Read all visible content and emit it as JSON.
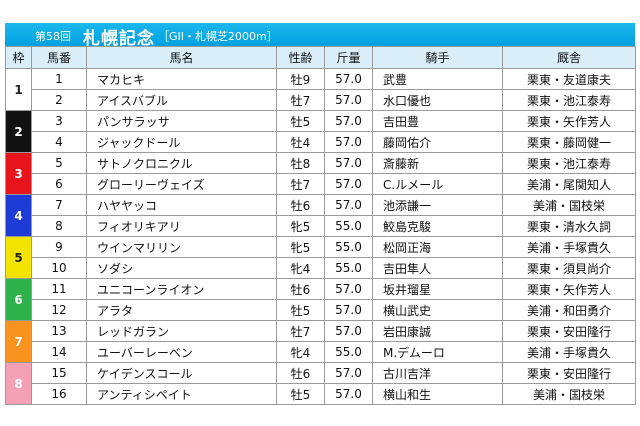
{
  "header": {
    "round": "第58回",
    "race_name": "札幌記念",
    "grade": "［GII・札幌芝2000m］"
  },
  "columns": [
    "枠",
    "馬番",
    "馬名",
    "性齢",
    "斤量",
    "騎手",
    "厩舎"
  ],
  "waku": [
    {
      "label": "1",
      "bg": "#ffffff",
      "fg": "#222222"
    },
    {
      "label": "2",
      "bg": "#111111",
      "fg": "#ffffff"
    },
    {
      "label": "3",
      "bg": "#e8141b",
      "fg": "#ffffff"
    },
    {
      "label": "4",
      "bg": "#1e3bd6",
      "fg": "#ffffff"
    },
    {
      "label": "5",
      "bg": "#f2e400",
      "fg": "#222222"
    },
    {
      "label": "6",
      "bg": "#2fb24c",
      "fg": "#ffffff"
    },
    {
      "label": "7",
      "bg": "#f7931e",
      "fg": "#ffffff"
    },
    {
      "label": "8",
      "bg": "#f4a1b5",
      "fg": "#ffffff"
    }
  ],
  "rows": [
    {
      "num": "1",
      "horse": "マカヒキ",
      "age": "牡9",
      "weight": "57.0",
      "jockey": "武豊",
      "trainer": "栗東・友道康夫"
    },
    {
      "num": "2",
      "horse": "アイスバブル",
      "age": "牡7",
      "weight": "57.0",
      "jockey": "水口優也",
      "trainer": "栗東・池江泰寿"
    },
    {
      "num": "3",
      "horse": "パンサラッサ",
      "age": "牡5",
      "weight": "57.0",
      "jockey": "吉田豊",
      "trainer": "栗東・矢作芳人"
    },
    {
      "num": "4",
      "horse": "ジャックドール",
      "age": "牡4",
      "weight": "57.0",
      "jockey": "藤岡佑介",
      "trainer": "栗東・藤岡健一"
    },
    {
      "num": "5",
      "horse": "サトノクロニクル",
      "age": "牡8",
      "weight": "57.0",
      "jockey": "斎藤新",
      "trainer": "栗東・池江泰寿"
    },
    {
      "num": "6",
      "horse": "グローリーヴェイズ",
      "age": "牡7",
      "weight": "57.0",
      "jockey": "C.ルメール",
      "trainer": "美浦・尾関知人"
    },
    {
      "num": "7",
      "horse": "ハヤヤッコ",
      "age": "牡6",
      "weight": "57.0",
      "jockey": "池添謙一",
      "trainer": "美浦・国枝栄"
    },
    {
      "num": "8",
      "horse": "フィオリキアリ",
      "age": "牝5",
      "weight": "55.0",
      "jockey": "鮫島克駿",
      "trainer": "栗東・清水久詞"
    },
    {
      "num": "9",
      "horse": "ウインマリリン",
      "age": "牝5",
      "weight": "55.0",
      "jockey": "松岡正海",
      "trainer": "美浦・手塚貴久"
    },
    {
      "num": "10",
      "horse": "ソダシ",
      "age": "牝4",
      "weight": "55.0",
      "jockey": "吉田隼人",
      "trainer": "栗東・須貝尚介"
    },
    {
      "num": "11",
      "horse": "ユニコーンライオン",
      "age": "牡6",
      "weight": "57.0",
      "jockey": "坂井瑠星",
      "trainer": "栗東・矢作芳人"
    },
    {
      "num": "12",
      "horse": "アラタ",
      "age": "牡5",
      "weight": "57.0",
      "jockey": "横山武史",
      "trainer": "美浦・和田勇介"
    },
    {
      "num": "13",
      "horse": "レッドガラン",
      "age": "牡7",
      "weight": "57.0",
      "jockey": "岩田康誠",
      "trainer": "栗東・安田隆行"
    },
    {
      "num": "14",
      "horse": "ユーバーレーベン",
      "age": "牝4",
      "weight": "55.0",
      "jockey": "M.デムーロ",
      "trainer": "美浦・手塚貴久"
    },
    {
      "num": "15",
      "horse": "ケイデンスコール",
      "age": "牡6",
      "weight": "57.0",
      "jockey": "古川吉洋",
      "trainer": "栗東・安田隆行"
    },
    {
      "num": "16",
      "horse": "アンティシペイト",
      "age": "牡5",
      "weight": "57.0",
      "jockey": "横山和生",
      "trainer": "美浦・国枝栄"
    }
  ]
}
